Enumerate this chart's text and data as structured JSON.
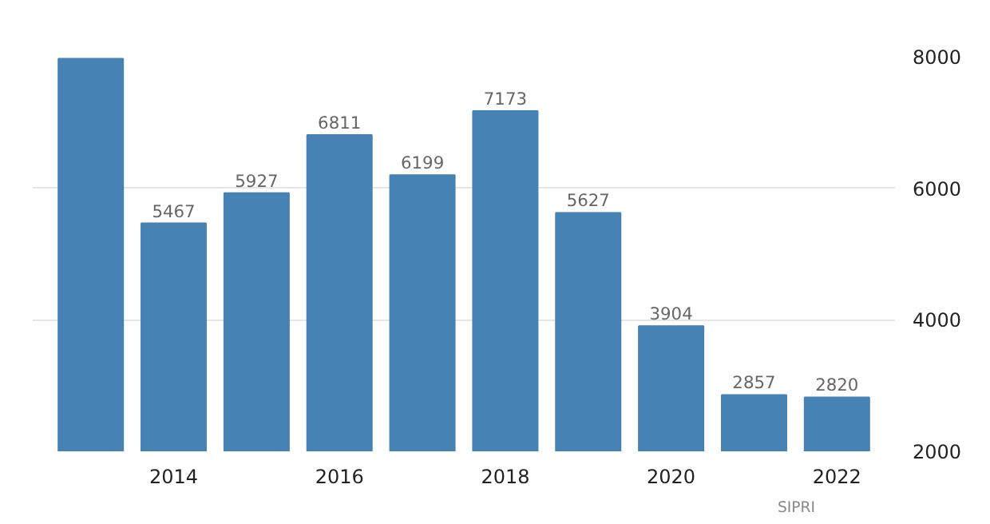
{
  "chart_data": {
    "type": "bar",
    "categories": [
      null,
      "2014",
      null,
      "2016",
      null,
      "2018",
      null,
      "2020",
      null,
      "2022"
    ],
    "values": [
      7970,
      5467,
      5927,
      6811,
      6199,
      7173,
      5627,
      3904,
      2857,
      2820
    ],
    "value_labels": [
      null,
      "5467",
      "5927",
      "6811",
      "6199",
      "7173",
      "5627",
      "3904",
      "2857",
      "2820"
    ],
    "color": "#4682b4",
    "ylim": [
      2000,
      8000
    ],
    "yticks": [
      2000,
      4000,
      6000,
      8000
    ],
    "grid": "y",
    "annotations": [
      "SIPRI"
    ]
  }
}
